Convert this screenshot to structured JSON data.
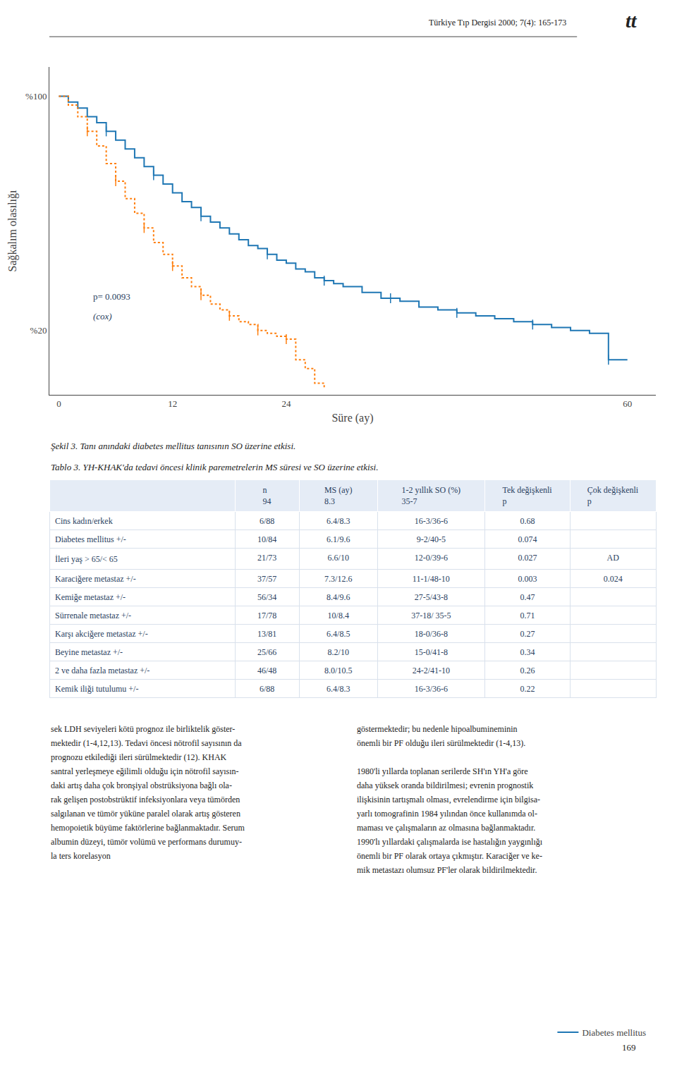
{
  "header": "Türkiye Tıp Dergisi 2000; 7(4): 165-173",
  "logo": "tt",
  "chart_data": [
    {
      "type": "line",
      "title": "Şekil 3. Tanı anındaki diabetes mellitus tanısının SO üzerine etkisi.",
      "xlabel": "Süre (ay)",
      "ylabel": "Sağkalım olasılığı",
      "xlim": [
        -1,
        63
      ],
      "xticks": [
        0,
        12,
        24,
        60
      ],
      "ylim": [
        -0.02,
        1.1
      ],
      "yticks": [
        {
          "value": 0.2,
          "label": "%20"
        },
        {
          "value": 1.0,
          "label": "%100"
        }
      ],
      "grid": false,
      "legend": "lower right",
      "annotations": [
        "p= 0.0093",
        "(cox)"
      ],
      "series": [
        {
          "name": "Diabetes mellitus",
          "line_style": "solid",
          "x": [
            0,
            1,
            2,
            3,
            4,
            5,
            6,
            7,
            8,
            9,
            10,
            11,
            12,
            13,
            14,
            15,
            16,
            17,
            18,
            19,
            20,
            21,
            22,
            23,
            24,
            25,
            26,
            27,
            28,
            29,
            30,
            32,
            34,
            36,
            38,
            40,
            42,
            44,
            46,
            48,
            50,
            52,
            54,
            56,
            58,
            60
          ],
          "values": [
            1.0,
            0.98,
            0.96,
            0.93,
            0.91,
            0.88,
            0.85,
            0.82,
            0.79,
            0.76,
            0.73,
            0.7,
            0.67,
            0.64,
            0.62,
            0.59,
            0.57,
            0.55,
            0.53,
            0.51,
            0.49,
            0.48,
            0.46,
            0.44,
            0.43,
            0.41,
            0.4,
            0.38,
            0.37,
            0.36,
            0.35,
            0.33,
            0.31,
            0.3,
            0.28,
            0.27,
            0.26,
            0.25,
            0.24,
            0.23,
            0.22,
            0.21,
            0.2,
            0.19,
            0.1,
            0.1
          ],
          "censored": {
            "x": [
              5,
              10,
              15,
              22,
              28,
              35,
              42,
              50,
              58
            ],
            "values": [
              0.88,
              0.73,
              0.59,
              0.46,
              0.37,
              0.31,
              0.26,
              0.22,
              0.1
            ]
          }
        },
        {
          "line_style": "dotted",
          "x": [
            0,
            1,
            2,
            3,
            4,
            5,
            6,
            7,
            8,
            9,
            10,
            11,
            12,
            13,
            14,
            15,
            16,
            17,
            18,
            19,
            20,
            21,
            22,
            23,
            24,
            25,
            26,
            27,
            28
          ],
          "values": [
            1.0,
            0.97,
            0.93,
            0.88,
            0.83,
            0.77,
            0.71,
            0.65,
            0.6,
            0.55,
            0.5,
            0.46,
            0.42,
            0.38,
            0.35,
            0.32,
            0.29,
            0.27,
            0.25,
            0.23,
            0.22,
            0.2,
            0.19,
            0.18,
            0.17,
            0.1,
            0.07,
            0.02,
            0.0
          ],
          "censored": {
            "x": [
              3,
              6,
              9,
              12,
              15,
              18,
              21,
              24
            ],
            "values": [
              0.88,
              0.71,
              0.55,
              0.42,
              0.32,
              0.25,
              0.2,
              0.17
            ]
          }
        }
      ]
    },
    {
      "type": "table",
      "title": "Tablo 3. YH-KHAK'da tedavi öncesi klinik paremetrelerin MS süresi ve SO üzerine etkisi.",
      "header": [
        [
          "",
          "n",
          "MS (ay)",
          "1-2 yıllık SO (%)",
          "Tek değişkenli",
          "Çok değişkenli"
        ],
        [
          "",
          "94",
          "8.3",
          "35-7",
          "p",
          "p"
        ]
      ],
      "rows": [
        [
          "Cins kadın/erkek",
          "6/88",
          "6.4/8.3",
          "16-3/36-6",
          "0.68",
          ""
        ],
        [
          "Diabetes mellitus +/-",
          "10/84",
          "6.1/9.6",
          "9-2/40-5",
          "0.074",
          ""
        ],
        [
          "İleri yaş > 65/< 65",
          "21/73",
          "6.6/10",
          "12-0/39-6",
          "0.027",
          "AD"
        ],
        [
          "Karaciğere metastaz +/-",
          "37/57",
          "7.3/12.6",
          "11-1/48-10",
          "0.003",
          "0.024"
        ],
        [
          "Kemiğe metastaz +/-",
          "56/34",
          "8.4/9.6",
          "27-5/43-8",
          "0.47",
          ""
        ],
        [
          "Sürrenale metastaz +/-",
          "17/78",
          "10/8.4",
          "37-18/ 35-5",
          "0.71",
          ""
        ],
        [
          "Karşı akciğere metastaz +/-",
          "13/81",
          "6.4/8.5",
          "18-0/36-8",
          "0.27",
          ""
        ],
        [
          "Beyine metastaz +/-",
          "25/66",
          "8.2/10",
          "15-0/41-8",
          "0.34",
          ""
        ],
        [
          "2 ve daha fazla metastaz +/-",
          "46/48",
          "8.0/10.5",
          "24-2/41-10",
          "0.26",
          ""
        ],
        [
          "Kemik iliği tutulumu +/-",
          "6/88",
          "6.4/8.3",
          "16-3/36-6",
          "0.22",
          ""
        ]
      ]
    }
  ],
  "body_left": [
    "sek LDH seviyeleri kötü prognoz ile birliktelik göster-",
    "mektedir (1-4,12,13). Tedavi öncesi nötrofil sayısının da",
    "prognozu etkilediği ileri sürülmektedir (12). KHAK",
    "santral yerleşmeye eğilimli olduğu için nötrofil sayısın-",
    "daki artış daha çok bronşiyal obstrüksiyona bağlı ola-",
    "rak gelişen postobstrüktif infeksiyonlara veya tümörden",
    "salgılanan ve tümör yüküne paralel olarak artış gösteren",
    "hemopoietik büyüme faktörlerine bağlanmaktadır. Serum",
    "albumin düzeyi, tümör volümü ve performans durumuy-",
    "la ters korelasyon"
  ],
  "body_right": [
    "göstermektedir; bu nedenle hipoalbumineminin",
    "önemli bir PF olduğu ileri sürülmektedir (1-4,13).",
    "",
    "1980'li yıllarda toplanan serilerde SH'ın YH'a göre",
    "daha yüksek oranda bildirilmesi; evrenin prognostik",
    "ilişkisinin tartışmalı olması, evrelendirme için bilgisa-",
    "yarlı tomografinin 1984 yılından önce kullanımda ol-",
    "maması ve çalışmaların az olmasına bağlanmaktadır.",
    "1990'lı yıllardaki çalışmalarda ise hastalığın yaygınlığı",
    "önemli bir PF olarak ortaya çıkmıştır. Karaciğer ve ke-",
    "mik metastazı olumsuz PF'ler olarak bildirilmektedir."
  ],
  "page_number": "169"
}
